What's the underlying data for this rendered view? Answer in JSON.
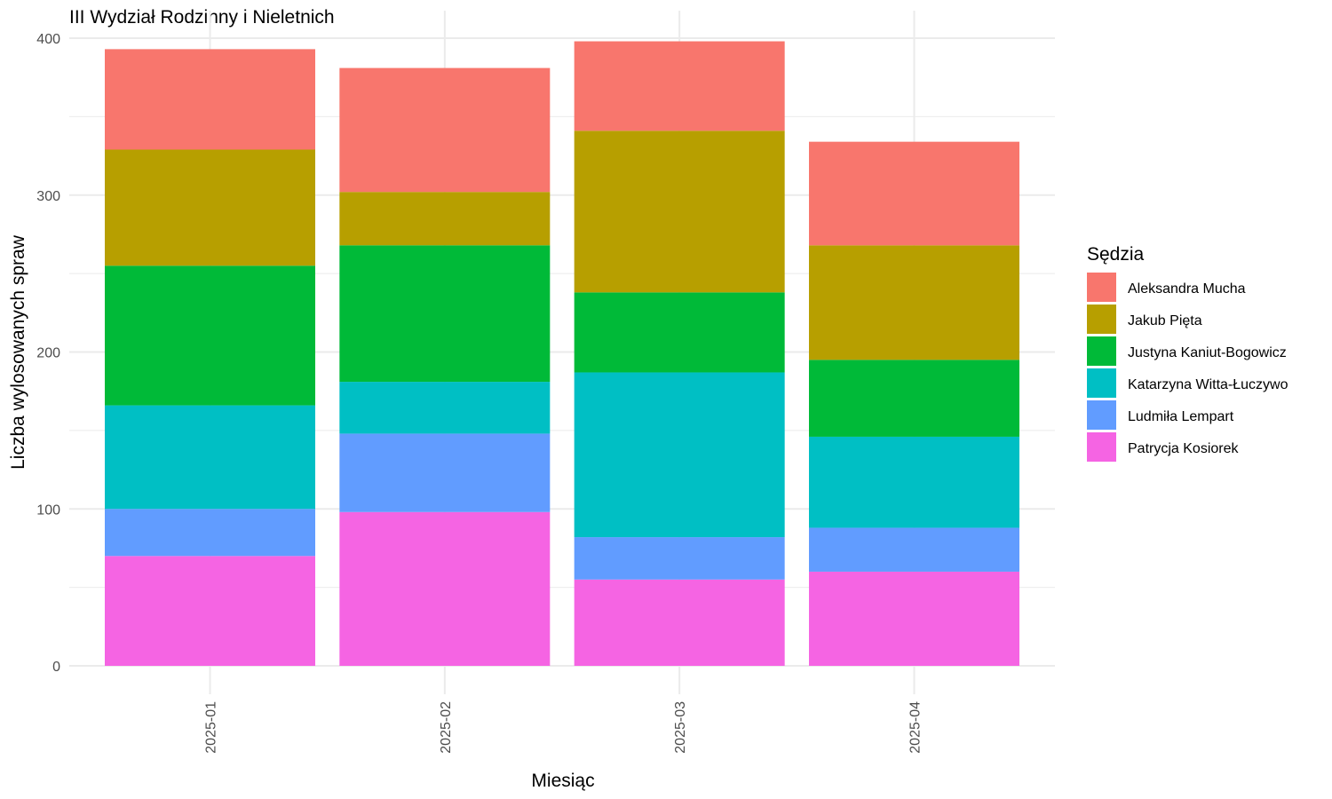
{
  "chart_data": {
    "type": "bar",
    "stacked": true,
    "title": "III Wydział Rodzinny i Nieletnich",
    "xlabel": "Miesiąc",
    "ylabel": "Liczba wylosowanych spraw",
    "ylim": [
      0,
      400
    ],
    "yticks": [
      0,
      100,
      200,
      300,
      400
    ],
    "grid": true,
    "legend_position": "right",
    "legend_title": "Sędzia",
    "categories": [
      "2025-01",
      "2025-02",
      "2025-03",
      "2025-04"
    ],
    "series": [
      {
        "name": "Aleksandra Mucha",
        "color": "#F8766D",
        "values": [
          64,
          79,
          57,
          66
        ]
      },
      {
        "name": "Jakub Pięta",
        "color": "#B79F00",
        "values": [
          74,
          34,
          103,
          73
        ]
      },
      {
        "name": "Justyna Kaniut-Bogowicz",
        "color": "#00BA38",
        "values": [
          89,
          87,
          51,
          49
        ]
      },
      {
        "name": "Katarzyna Witta-Łuczywo",
        "color": "#00BFC4",
        "values": [
          66,
          33,
          105,
          58
        ]
      },
      {
        "name": "Ludmiła Lempart",
        "color": "#619CFF",
        "values": [
          30,
          50,
          27,
          28
        ]
      },
      {
        "name": "Patrycja Kosiorek",
        "color": "#F564E3",
        "values": [
          70,
          98,
          55,
          60
        ]
      }
    ]
  }
}
